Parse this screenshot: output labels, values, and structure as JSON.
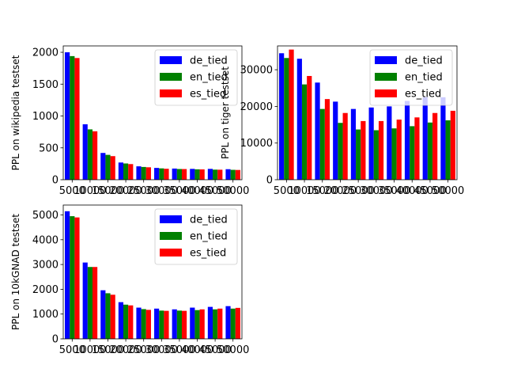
{
  "chart_data": [
    {
      "type": "bar",
      "ylabel": "PPL on wikipedia testset",
      "categories": [
        "5000",
        "10000",
        "15000",
        "20000",
        "25000",
        "30000",
        "35000",
        "40000",
        "45000",
        "50000"
      ],
      "yticks": [
        "0",
        "500",
        "1000",
        "1500",
        "2000"
      ],
      "ylim": [
        0,
        2100
      ],
      "legend_position": "upper right",
      "series": [
        {
          "name": "de_tied",
          "color": "#0000ff",
          "values": [
            2000,
            870,
            420,
            270,
            210,
            185,
            175,
            170,
            170,
            165
          ]
        },
        {
          "name": "en_tied",
          "color": "#008000",
          "values": [
            1940,
            790,
            390,
            255,
            200,
            178,
            168,
            163,
            158,
            155
          ]
        },
        {
          "name": "es_tied",
          "color": "#ff0000",
          "values": [
            1910,
            760,
            370,
            245,
            195,
            172,
            167,
            162,
            157,
            153
          ]
        }
      ]
    },
    {
      "type": "bar",
      "ylabel": "PPL on tiger testset",
      "categories": [
        "5000",
        "10000",
        "15000",
        "20000",
        "25000",
        "30000",
        "35000",
        "40000",
        "45000",
        "50000"
      ],
      "yticks": [
        "0",
        "10000",
        "20000",
        "30000"
      ],
      "ylim": [
        0,
        36500
      ],
      "legend_position": "upper right",
      "series": [
        {
          "name": "de_tied",
          "color": "#0000ff",
          "values": [
            34500,
            33000,
            26500,
            21300,
            19300,
            19700,
            20000,
            21500,
            22500,
            22500
          ]
        },
        {
          "name": "en_tied",
          "color": "#008000",
          "values": [
            33200,
            26000,
            19300,
            15500,
            13700,
            13500,
            14000,
            14600,
            15600,
            16200
          ]
        },
        {
          "name": "es_tied",
          "color": "#ff0000",
          "values": [
            35500,
            28300,
            22000,
            18200,
            16000,
            16000,
            16400,
            17000,
            18200,
            18800
          ]
        }
      ]
    },
    {
      "type": "bar",
      "ylabel": "PPL on 10kGNAD testset",
      "categories": [
        "5000",
        "10000",
        "15000",
        "20000",
        "25000",
        "30000",
        "35000",
        "40000",
        "45000",
        "50000"
      ],
      "yticks": [
        "0",
        "1000",
        "2000",
        "3000",
        "4000",
        "5000"
      ],
      "ylim": [
        0,
        5400
      ],
      "legend_position": "upper right",
      "series": [
        {
          "name": "de_tied",
          "color": "#0000ff",
          "values": [
            5150,
            3080,
            1960,
            1480,
            1260,
            1220,
            1190,
            1260,
            1290,
            1320
          ]
        },
        {
          "name": "en_tied",
          "color": "#008000",
          "values": [
            4950,
            2900,
            1840,
            1380,
            1200,
            1140,
            1140,
            1160,
            1190,
            1220
          ]
        },
        {
          "name": "es_tied",
          "color": "#ff0000",
          "values": [
            4900,
            2900,
            1780,
            1350,
            1170,
            1130,
            1130,
            1190,
            1220,
            1250
          ]
        }
      ]
    }
  ]
}
